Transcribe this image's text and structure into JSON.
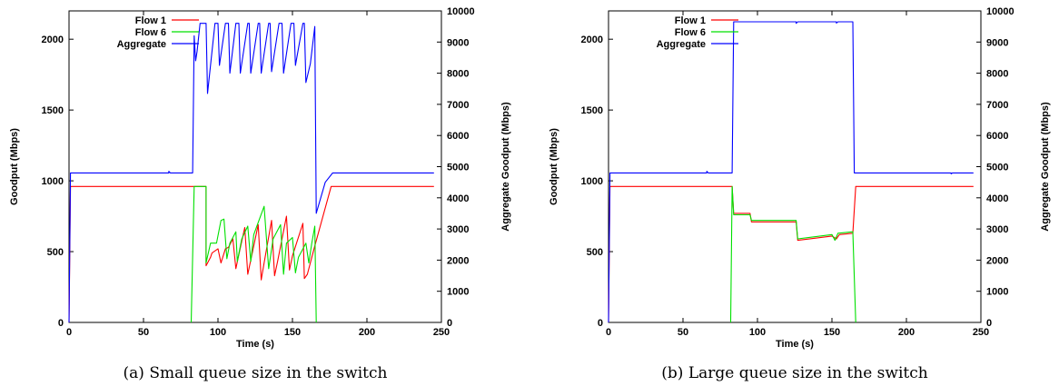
{
  "chart_data": [
    {
      "type": "line",
      "caption": "(a)  Small queue size in the switch",
      "xlabel": "Time (s)",
      "ylabel": "Goodput (Mbps)",
      "y2label": "Aggregate Goodput (Mbps)",
      "xlim": [
        0,
        250
      ],
      "ylim": [
        0,
        2200
      ],
      "y2lim": [
        0,
        10000
      ],
      "xticks": [
        "0",
        "50",
        "100",
        "150",
        "200",
        "250"
      ],
      "yticks": [
        "0",
        "500",
        "1000",
        "1500",
        "2000"
      ],
      "y2ticks": [
        "0",
        "1000",
        "2000",
        "3000",
        "4000",
        "5000",
        "6000",
        "7000",
        "8000",
        "9000",
        "10000"
      ],
      "legend_position": "top-left",
      "series": [
        {
          "name": "Flow 1",
          "color": "#ff0000",
          "axis": "left",
          "points": [
            [
              0,
              0
            ],
            [
              1,
              960
            ],
            [
              83,
              960
            ],
            [
              83,
              960
            ],
            [
              92,
              960
            ],
            [
              92,
              400
            ],
            [
              95,
              460
            ],
            [
              96,
              490
            ],
            [
              100,
              520
            ],
            [
              102,
              420
            ],
            [
              105,
              520
            ],
            [
              107,
              530
            ],
            [
              110,
              590
            ],
            [
              112,
              380
            ],
            [
              114,
              480
            ],
            [
              118,
              670
            ],
            [
              120,
              340
            ],
            [
              122,
              440
            ],
            [
              127,
              690
            ],
            [
              129,
              300
            ],
            [
              131,
              420
            ],
            [
              136,
              720
            ],
            [
              138,
              330
            ],
            [
              140,
              430
            ],
            [
              146,
              750
            ],
            [
              148,
              370
            ],
            [
              150,
              470
            ],
            [
              157,
              700
            ],
            [
              158,
              310
            ],
            [
              160,
              340
            ],
            [
              165,
              540
            ],
            [
              176,
              960
            ],
            [
              245,
              960
            ]
          ]
        },
        {
          "name": "Flow 6",
          "color": "#00e000",
          "axis": "left",
          "points": [
            [
              82,
              0
            ],
            [
              84,
              960
            ],
            [
              92,
              960
            ],
            [
              92,
              420
            ],
            [
              95,
              560
            ],
            [
              99,
              560
            ],
            [
              102,
              720
            ],
            [
              104,
              730
            ],
            [
              106,
              450
            ],
            [
              108,
              560
            ],
            [
              112,
              640
            ],
            [
              113,
              430
            ],
            [
              116,
              590
            ],
            [
              120,
              680
            ],
            [
              122,
              430
            ],
            [
              124,
              620
            ],
            [
              131,
              820
            ],
            [
              134,
              380
            ],
            [
              137,
              590
            ],
            [
              142,
              690
            ],
            [
              144,
              340
            ],
            [
              146,
              560
            ],
            [
              150,
              600
            ],
            [
              152,
              350
            ],
            [
              154,
              460
            ],
            [
              159,
              560
            ],
            [
              161,
              420
            ],
            [
              163,
              560
            ],
            [
              165,
              680
            ],
            [
              166,
              0
            ]
          ]
        },
        {
          "name": "Aggregate",
          "color": "#0000ff",
          "axis": "right",
          "points": [
            [
              0,
              0
            ],
            [
              1,
              4800
            ],
            [
              67,
              4800
            ],
            [
              67,
              4850
            ],
            [
              68,
              4800
            ],
            [
              83,
              4800
            ],
            [
              84,
              9200
            ],
            [
              85,
              8400
            ],
            [
              86,
              8700
            ],
            [
              88,
              9600
            ],
            [
              92,
              9600
            ],
            [
              93,
              7350
            ],
            [
              98,
              9600
            ],
            [
              100,
              9600
            ],
            [
              101,
              8250
            ],
            [
              105,
              9600
            ],
            [
              107,
              9600
            ],
            [
              108,
              8000
            ],
            [
              112,
              9600
            ],
            [
              114,
              9600
            ],
            [
              115,
              8000
            ],
            [
              120,
              9600
            ],
            [
              121,
              9600
            ],
            [
              122,
              8000
            ],
            [
              127,
              9600
            ],
            [
              128,
              9600
            ],
            [
              129,
              8000
            ],
            [
              134,
              9600
            ],
            [
              135,
              9600
            ],
            [
              136,
              8050
            ],
            [
              141,
              9600
            ],
            [
              143,
              9600
            ],
            [
              144,
              8000
            ],
            [
              149,
              9600
            ],
            [
              151,
              9600
            ],
            [
              152,
              8250
            ],
            [
              157,
              9600
            ],
            [
              158,
              9600
            ],
            [
              159,
              7700
            ],
            [
              162,
              8300
            ],
            [
              165,
              9500
            ],
            [
              166,
              3500
            ],
            [
              172,
              4500
            ],
            [
              177,
              4800
            ],
            [
              245,
              4800
            ]
          ]
        }
      ]
    },
    {
      "type": "line",
      "caption": "(b)  Large queue size in the switch",
      "xlabel": "Time (s)",
      "ylabel": "Goodput (Mbps)",
      "y2label": "Aggregate Goodput (Mbps)",
      "xlim": [
        0,
        250
      ],
      "ylim": [
        0,
        2200
      ],
      "y2lim": [
        0,
        10000
      ],
      "xticks": [
        "0",
        "50",
        "100",
        "150",
        "200",
        "250"
      ],
      "yticks": [
        "0",
        "500",
        "1000",
        "1500",
        "2000"
      ],
      "y2ticks": [
        "0",
        "1000",
        "2000",
        "3000",
        "4000",
        "5000",
        "6000",
        "7000",
        "8000",
        "9000",
        "10000"
      ],
      "legend_position": "top-left",
      "series": [
        {
          "name": "Flow 1",
          "color": "#ff0000",
          "axis": "left",
          "points": [
            [
              0,
              0
            ],
            [
              1,
              960
            ],
            [
              83,
              960
            ],
            [
              84,
              770
            ],
            [
              95,
              770
            ],
            [
              96,
              710
            ],
            [
              126,
              710
            ],
            [
              127,
              580
            ],
            [
              150,
              610
            ],
            [
              153,
              590
            ],
            [
              155,
              620
            ],
            [
              164,
              630
            ],
            [
              166,
              960
            ],
            [
              245,
              960
            ]
          ]
        },
        {
          "name": "Flow 6",
          "color": "#00e000",
          "axis": "left",
          "points": [
            [
              82,
              0
            ],
            [
              83,
              960
            ],
            [
              84,
              760
            ],
            [
              95,
              760
            ],
            [
              96,
              720
            ],
            [
              126,
              720
            ],
            [
              127,
              590
            ],
            [
              150,
              620
            ],
            [
              152,
              580
            ],
            [
              154,
              630
            ],
            [
              164,
              640
            ],
            [
              166,
              0
            ]
          ]
        },
        {
          "name": "Aggregate",
          "color": "#0000ff",
          "axis": "right",
          "points": [
            [
              0,
              0
            ],
            [
              1,
              4800
            ],
            [
              66,
              4800
            ],
            [
              66,
              4850
            ],
            [
              67,
              4800
            ],
            [
              83,
              4800
            ],
            [
              84,
              9650
            ],
            [
              126,
              9650
            ],
            [
              126,
              9600
            ],
            [
              127,
              9650
            ],
            [
              153,
              9650
            ],
            [
              153,
              9610
            ],
            [
              154,
              9650
            ],
            [
              164,
              9650
            ],
            [
              165,
              4800
            ],
            [
              230,
              4800
            ],
            [
              230,
              4770
            ],
            [
              231,
              4800
            ],
            [
              245,
              4800
            ]
          ]
        }
      ]
    }
  ]
}
